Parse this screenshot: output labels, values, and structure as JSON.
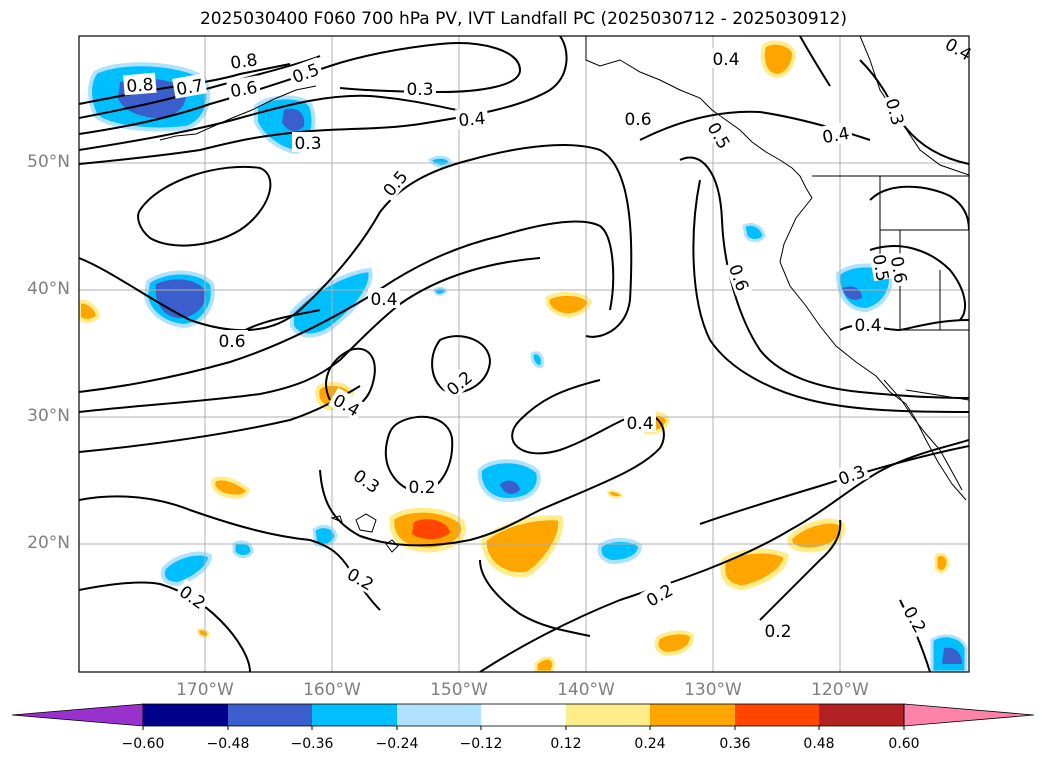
{
  "title": "2025030400 F060 700 hPa PV, IVT Landfall PC (2025030712 - 2025030912)",
  "lat_labels": [
    "50°N",
    "40°N",
    "30°N",
    "20°N"
  ],
  "lon_labels": [
    "170°W",
    "160°W",
    "150°W",
    "140°W",
    "130°W",
    "120°W"
  ],
  "colorbar": {
    "ticks": [
      "−0.60",
      "−0.48",
      "−0.36",
      "−0.24",
      "−0.12",
      "0.12",
      "0.24",
      "0.36",
      "0.48",
      "0.60"
    ],
    "colors": [
      "#9932cc",
      "#00008b",
      "#3a5fcd",
      "#00bfff",
      "#b0e2ff",
      "#ffffff",
      "#ffec8b",
      "#ffa500",
      "#ff4500",
      "#b22222",
      "#ff83a8"
    ]
  },
  "contour_labels": [
    {
      "text": "0.8"
    },
    {
      "text": "0.7"
    },
    {
      "text": "0.8"
    },
    {
      "text": "0.6"
    },
    {
      "text": "0.5"
    },
    {
      "text": "0.3"
    },
    {
      "text": "0.4"
    },
    {
      "text": "0.3"
    },
    {
      "text": "0.5"
    },
    {
      "text": "0.6"
    },
    {
      "text": "0.4"
    },
    {
      "text": "0.6"
    },
    {
      "text": "0.2"
    },
    {
      "text": "0.4"
    },
    {
      "text": "0.3"
    },
    {
      "text": "0.2"
    },
    {
      "text": "0.2"
    },
    {
      "text": "0.2"
    },
    {
      "text": "0.2"
    },
    {
      "text": "0.4"
    },
    {
      "text": "0.6"
    },
    {
      "text": "0.4"
    },
    {
      "text": "0.5"
    },
    {
      "text": "0.3"
    },
    {
      "text": "0.4"
    },
    {
      "text": "0.6"
    },
    {
      "text": "0.4"
    },
    {
      "text": "0.3"
    },
    {
      "text": "0.2"
    },
    {
      "text": "0.2"
    },
    {
      "text": "0.6"
    },
    {
      "text": "0.4"
    },
    {
      "text": "0.5"
    }
  ]
}
